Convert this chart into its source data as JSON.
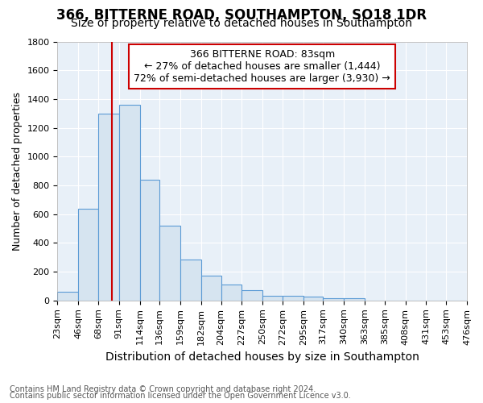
{
  "title": "366, BITTERNE ROAD, SOUTHAMPTON, SO18 1DR",
  "subtitle": "Size of property relative to detached houses in Southampton",
  "xlabel": "Distribution of detached houses by size in Southampton",
  "ylabel": "Number of detached properties",
  "footer_line1": "Contains HM Land Registry data © Crown copyright and database right 2024.",
  "footer_line2": "Contains public sector information licensed under the Open Government Licence v3.0.",
  "bin_edges": [
    23,
    46,
    68,
    91,
    114,
    136,
    159,
    182,
    204,
    227,
    250,
    272,
    295,
    317,
    340,
    363,
    385,
    408,
    431,
    453,
    476
  ],
  "bar_heights": [
    60,
    640,
    1300,
    1360,
    840,
    520,
    285,
    175,
    110,
    70,
    35,
    35,
    25,
    15,
    15,
    0,
    0,
    0,
    0,
    0
  ],
  "bar_color": "#d6e4f0",
  "bar_edge_color": "#5b9bd5",
  "bg_color": "#e8f0f8",
  "grid_color": "#ffffff",
  "property_size": 83,
  "red_line_color": "#cc0000",
  "annotation_text_line1": "366 BITTERNE ROAD: 83sqm",
  "annotation_text_line2": "← 27% of detached houses are smaller (1,444)",
  "annotation_text_line3": "72% of semi-detached houses are larger (3,930) →",
  "annotation_box_color": "#cc0000",
  "ylim": [
    0,
    1800
  ],
  "yticks": [
    0,
    200,
    400,
    600,
    800,
    1000,
    1200,
    1400,
    1600,
    1800
  ],
  "title_fontsize": 12,
  "subtitle_fontsize": 10,
  "ylabel_fontsize": 9,
  "xlabel_fontsize": 10,
  "footer_fontsize": 7,
  "annotation_fontsize": 9
}
